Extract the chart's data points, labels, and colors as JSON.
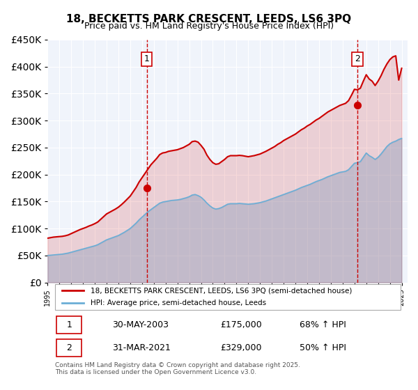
{
  "title": "18, BECKETTS PARK CRESCENT, LEEDS, LS6 3PQ",
  "subtitle": "Price paid vs. HM Land Registry's House Price Index (HPI)",
  "hpi_label": "HPI: Average price, semi-detached house, Leeds",
  "property_label": "18, BECKETTS PARK CRESCENT, LEEDS, LS6 3PQ (semi-detached house)",
  "sale1_date": "30-MAY-2003",
  "sale1_price": 175000,
  "sale1_pct": "68% ↑ HPI",
  "sale2_date": "31-MAR-2021",
  "sale2_price": 329000,
  "sale2_pct": "50% ↑ HPI",
  "sale1_year": 2003.41,
  "sale2_year": 2021.25,
  "hpi_color": "#6baed6",
  "property_color": "#cc0000",
  "vline_color": "#cc0000",
  "background_color": "#f0f4fb",
  "grid_color": "#ffffff",
  "ylim": [
    0,
    450000
  ],
  "xlim_start": 1995,
  "xlim_end": 2025.5,
  "footer": "Contains HM Land Registry data © Crown copyright and database right 2025.\nThis data is licensed under the Open Government Licence v3.0.",
  "hpi_data_x": [
    1995.0,
    1995.25,
    1995.5,
    1995.75,
    1996.0,
    1996.25,
    1996.5,
    1996.75,
    1997.0,
    1997.25,
    1997.5,
    1997.75,
    1998.0,
    1998.25,
    1998.5,
    1998.75,
    1999.0,
    1999.25,
    1999.5,
    1999.75,
    2000.0,
    2000.25,
    2000.5,
    2000.75,
    2001.0,
    2001.25,
    2001.5,
    2001.75,
    2002.0,
    2002.25,
    2002.5,
    2002.75,
    2003.0,
    2003.25,
    2003.5,
    2003.75,
    2004.0,
    2004.25,
    2004.5,
    2004.75,
    2005.0,
    2005.25,
    2005.5,
    2005.75,
    2006.0,
    2006.25,
    2006.5,
    2006.75,
    2007.0,
    2007.25,
    2007.5,
    2007.75,
    2008.0,
    2008.25,
    2008.5,
    2008.75,
    2009.0,
    2009.25,
    2009.5,
    2009.75,
    2010.0,
    2010.25,
    2010.5,
    2010.75,
    2011.0,
    2011.25,
    2011.5,
    2011.75,
    2012.0,
    2012.25,
    2012.5,
    2012.75,
    2013.0,
    2013.25,
    2013.5,
    2013.75,
    2014.0,
    2014.25,
    2014.5,
    2014.75,
    2015.0,
    2015.25,
    2015.5,
    2015.75,
    2016.0,
    2016.25,
    2016.5,
    2016.75,
    2017.0,
    2017.25,
    2017.5,
    2017.75,
    2018.0,
    2018.25,
    2018.5,
    2018.75,
    2019.0,
    2019.25,
    2019.5,
    2019.75,
    2020.0,
    2020.25,
    2020.5,
    2020.75,
    2021.0,
    2021.25,
    2021.5,
    2021.75,
    2022.0,
    2022.25,
    2022.5,
    2022.75,
    2023.0,
    2023.25,
    2023.5,
    2023.75,
    2024.0,
    2024.25,
    2024.5,
    2024.75,
    2025.0
  ],
  "hpi_data_y": [
    50000,
    50500,
    51000,
    51500,
    52000,
    52500,
    53500,
    54500,
    56000,
    57500,
    59000,
    60500,
    62000,
    63500,
    65000,
    66500,
    68000,
    70000,
    73000,
    76000,
    79000,
    81000,
    83000,
    85000,
    87000,
    90000,
    93000,
    96500,
    100000,
    105000,
    110000,
    116000,
    121000,
    126000,
    131000,
    135000,
    139000,
    143000,
    147000,
    149000,
    150000,
    151000,
    152000,
    152500,
    153000,
    154000,
    155500,
    157000,
    159000,
    162000,
    163000,
    161000,
    158000,
    153000,
    147000,
    142000,
    138000,
    136000,
    137000,
    139000,
    142000,
    145000,
    146000,
    146000,
    146000,
    146500,
    146000,
    145500,
    145000,
    145500,
    146000,
    147000,
    148000,
    149500,
    151000,
    153000,
    155000,
    157000,
    159000,
    161000,
    163000,
    165000,
    167000,
    169000,
    171000,
    173500,
    176000,
    178000,
    180000,
    182000,
    184500,
    187000,
    189000,
    191000,
    193500,
    196000,
    198000,
    200000,
    202000,
    204000,
    205000,
    206000,
    209000,
    215000,
    221000,
    222000,
    224000,
    232000,
    240000,
    235000,
    232000,
    228000,
    232000,
    238000,
    245000,
    252000,
    257000,
    260000,
    262000,
    265000,
    267000
  ],
  "prop_data_x": [
    1995.0,
    1995.25,
    1995.5,
    1995.75,
    1996.0,
    1996.25,
    1996.5,
    1996.75,
    1997.0,
    1997.25,
    1997.5,
    1997.75,
    1998.0,
    1998.25,
    1998.5,
    1998.75,
    1999.0,
    1999.25,
    1999.5,
    1999.75,
    2000.0,
    2000.25,
    2000.5,
    2000.75,
    2001.0,
    2001.25,
    2001.5,
    2001.75,
    2002.0,
    2002.25,
    2002.5,
    2002.75,
    2003.0,
    2003.25,
    2003.5,
    2003.75,
    2004.0,
    2004.25,
    2004.5,
    2004.75,
    2005.0,
    2005.25,
    2005.5,
    2005.75,
    2006.0,
    2006.25,
    2006.5,
    2006.75,
    2007.0,
    2007.25,
    2007.5,
    2007.75,
    2008.0,
    2008.25,
    2008.5,
    2008.75,
    2009.0,
    2009.25,
    2009.5,
    2009.75,
    2010.0,
    2010.25,
    2010.5,
    2010.75,
    2011.0,
    2011.25,
    2011.5,
    2011.75,
    2012.0,
    2012.25,
    2012.5,
    2012.75,
    2013.0,
    2013.25,
    2013.5,
    2013.75,
    2014.0,
    2014.25,
    2014.5,
    2014.75,
    2015.0,
    2015.25,
    2015.5,
    2015.75,
    2016.0,
    2016.25,
    2016.5,
    2016.75,
    2017.0,
    2017.25,
    2017.5,
    2017.75,
    2018.0,
    2018.25,
    2018.5,
    2018.75,
    2019.0,
    2019.25,
    2019.5,
    2019.75,
    2020.0,
    2020.25,
    2020.5,
    2020.75,
    2021.0,
    2021.25,
    2021.5,
    2021.75,
    2022.0,
    2022.25,
    2022.5,
    2022.75,
    2023.0,
    2023.25,
    2023.5,
    2023.75,
    2024.0,
    2024.25,
    2024.5,
    2024.75,
    2025.0
  ],
  "prop_data_y": [
    82000,
    83000,
    84000,
    84500,
    85000,
    85500,
    86500,
    88000,
    90500,
    93000,
    95500,
    98000,
    100000,
    102000,
    104500,
    106500,
    109000,
    112000,
    117000,
    122000,
    127000,
    130000,
    133000,
    136000,
    139500,
    144000,
    149000,
    154500,
    160000,
    168000,
    176000,
    186000,
    194000,
    202000,
    210000,
    218000,
    224000,
    230000,
    237000,
    240000,
    241000,
    243000,
    244000,
    245000,
    246000,
    248000,
    250000,
    253000,
    256000,
    261000,
    262000,
    260000,
    254000,
    247000,
    236000,
    228000,
    222000,
    219000,
    220000,
    224000,
    228000,
    233000,
    235000,
    235000,
    235000,
    235500,
    235000,
    234000,
    233000,
    234000,
    235000,
    236500,
    238000,
    240500,
    243000,
    246000,
    249000,
    252000,
    256000,
    259000,
    263000,
    266000,
    269000,
    272000,
    275000,
    279000,
    283000,
    286000,
    290000,
    293000,
    297000,
    301000,
    304000,
    308000,
    312000,
    316000,
    319000,
    322000,
    325000,
    328000,
    330000,
    332000,
    337000,
    347000,
    358000,
    357000,
    360000,
    373000,
    385000,
    377000,
    373000,
    365000,
    373000,
    383000,
    395000,
    405000,
    413000,
    418000,
    420000,
    375000,
    397000
  ]
}
